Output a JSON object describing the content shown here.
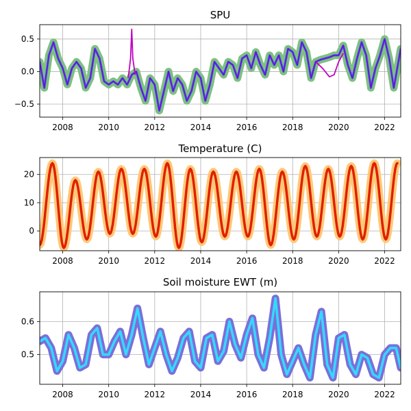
{
  "chart_data": [
    {
      "type": "line",
      "title": "SPU",
      "xlim": [
        2007.0,
        2022.7
      ],
      "ylim": [
        -0.7,
        0.72
      ],
      "xticks": [
        "2008",
        "2010",
        "2012",
        "2014",
        "2016",
        "2018",
        "2020",
        "2022"
      ],
      "xtick_values": [
        2008,
        2010,
        2012,
        2014,
        2016,
        2018,
        2020,
        2022
      ],
      "yticks": [
        "−0.5",
        "0.0",
        "0.5"
      ],
      "ytick_values": [
        -0.5,
        0.0,
        0.5
      ],
      "grid": true,
      "series": [
        {
          "style": "thick-halo",
          "color": "#7fc081",
          "inner_color": "#4f7fc8",
          "x": [
            2007.0,
            2007.2,
            2007.4,
            2007.6,
            2007.8,
            2008.0,
            2008.2,
            2008.4,
            2008.6,
            2008.8,
            2009.0,
            2009.2,
            2009.4,
            2009.6,
            2009.8,
            2010.0,
            2010.2,
            2010.4,
            2010.6,
            2010.8,
            2011.0,
            2011.2,
            2011.4,
            2011.6,
            2011.8,
            2012.0,
            2012.2,
            2012.4,
            2012.6,
            2012.8,
            2013.0,
            2013.2,
            2013.4,
            2013.6,
            2013.8,
            2014.0,
            2014.2,
            2014.4,
            2014.6,
            2014.8,
            2015.0,
            2015.2,
            2015.4,
            2015.6,
            2015.8,
            2016.0,
            2016.2,
            2016.4,
            2016.6,
            2016.8,
            2017.0,
            2017.2,
            2017.4,
            2017.6,
            2017.8,
            2018.0,
            2018.2,
            2018.4,
            2018.6,
            2018.8,
            2019.0,
            2019.2,
            2019.4,
            2019.6,
            2019.8,
            2020.0,
            2020.2,
            2020.4,
            2020.6,
            2020.8,
            2021.0,
            2021.2,
            2021.4,
            2021.6,
            2021.8,
            2022.0,
            2022.2,
            2022.4,
            2022.7
          ],
          "y": [
            0.15,
            -0.25,
            0.25,
            0.45,
            0.2,
            0.05,
            -0.2,
            0.05,
            0.15,
            0.05,
            -0.25,
            -0.1,
            0.35,
            0.2,
            -0.15,
            -0.2,
            -0.15,
            -0.2,
            -0.1,
            -0.2,
            -0.05,
            0.0,
            -0.25,
            -0.45,
            -0.1,
            -0.2,
            -0.6,
            -0.3,
            0.0,
            -0.3,
            -0.1,
            -0.2,
            -0.45,
            -0.3,
            0.0,
            -0.1,
            -0.45,
            -0.2,
            0.15,
            0.05,
            -0.05,
            0.15,
            0.1,
            -0.1,
            0.2,
            0.25,
            0.05,
            0.3,
            0.1,
            -0.05,
            0.25,
            0.1,
            0.25,
            0.0,
            0.35,
            0.3,
            0.1,
            0.45,
            0.3,
            -0.1,
            0.15,
            0.18,
            0.2,
            0.22,
            0.25,
            0.25,
            0.4,
            0.1,
            -0.1,
            0.2,
            0.45,
            0.25,
            -0.25,
            0.05,
            0.25,
            0.5,
            0.2,
            -0.25,
            0.35
          ]
        },
        {
          "style": "thin",
          "color": "#6a0dde",
          "x": [
            2007.0,
            2007.2,
            2007.4,
            2007.6,
            2007.8,
            2008.0,
            2008.2,
            2008.4,
            2008.6,
            2008.8,
            2009.0,
            2009.2,
            2009.4,
            2009.6,
            2009.8,
            2010.0,
            2010.2,
            2010.4,
            2010.6,
            2010.8,
            2011.0,
            2011.2,
            2011.4,
            2011.6,
            2011.8,
            2012.0,
            2012.2,
            2012.4,
            2012.6,
            2012.8,
            2013.0,
            2013.2,
            2013.4,
            2013.6,
            2013.8,
            2014.0,
            2014.2,
            2014.4,
            2014.6,
            2014.8,
            2015.0,
            2015.2,
            2015.4,
            2015.6,
            2015.8,
            2016.0,
            2016.2,
            2016.4,
            2016.6,
            2016.8,
            2017.0,
            2017.2,
            2017.4,
            2017.6,
            2017.8,
            2018.0,
            2018.2,
            2018.4,
            2018.6,
            2018.8,
            2019.0,
            2019.2,
            2019.4,
            2019.6,
            2019.8,
            2020.0,
            2020.2,
            2020.4,
            2020.6,
            2020.8,
            2021.0,
            2021.2,
            2021.4,
            2021.6,
            2021.8,
            2022.0,
            2022.2,
            2022.4,
            2022.7
          ],
          "y": [
            0.15,
            -0.25,
            0.25,
            0.45,
            0.2,
            0.05,
            -0.2,
            0.05,
            0.15,
            0.05,
            -0.25,
            -0.1,
            0.35,
            0.2,
            -0.15,
            -0.2,
            -0.15,
            -0.2,
            -0.1,
            -0.2,
            -0.05,
            0.0,
            -0.25,
            -0.45,
            -0.1,
            -0.2,
            -0.6,
            -0.3,
            0.0,
            -0.3,
            -0.1,
            -0.2,
            -0.45,
            -0.3,
            0.0,
            -0.1,
            -0.45,
            -0.2,
            0.15,
            0.05,
            -0.05,
            0.15,
            0.1,
            -0.1,
            0.2,
            0.25,
            0.05,
            0.3,
            0.1,
            -0.05,
            0.25,
            0.1,
            0.25,
            0.0,
            0.35,
            0.3,
            0.1,
            0.45,
            0.3,
            -0.1,
            0.15,
            0.18,
            0.2,
            0.22,
            0.25,
            0.25,
            0.4,
            0.1,
            -0.1,
            0.2,
            0.45,
            0.25,
            -0.25,
            0.05,
            0.25,
            0.5,
            0.2,
            -0.25,
            0.35
          ]
        },
        {
          "style": "thin",
          "color": "#c000c0",
          "x": [
            2010.85,
            2010.95,
            2011.0,
            2011.05,
            2011.15
          ],
          "y": [
            -0.1,
            0.2,
            0.65,
            0.2,
            -0.05
          ]
        },
        {
          "style": "thin",
          "color": "#c000c0",
          "x": [
            2019.0,
            2019.3,
            2019.6,
            2019.8,
            2020.0,
            2020.2
          ],
          "y": [
            0.15,
            0.05,
            -0.08,
            -0.05,
            0.15,
            0.28
          ]
        }
      ]
    },
    {
      "type": "line",
      "title": "Temperature (C)",
      "xlim": [
        2007.0,
        2022.7
      ],
      "ylim": [
        -7,
        26
      ],
      "xticks": [
        "2008",
        "2010",
        "2012",
        "2014",
        "2016",
        "2018",
        "2020",
        "2022"
      ],
      "xtick_values": [
        2008,
        2010,
        2012,
        2014,
        2016,
        2018,
        2020,
        2022
      ],
      "yticks": [
        "0",
        "10",
        "20"
      ],
      "ytick_values": [
        0,
        10,
        20
      ],
      "grid": true,
      "series": [
        {
          "style": "thick-halo",
          "color": "#ffc878",
          "inner_color": "#e02000",
          "seasonal": {
            "peaks": [
              [
                2007.55,
                24
              ],
              [
                2008.55,
                18
              ],
              [
                2009.55,
                21
              ],
              [
                2010.55,
                22
              ],
              [
                2011.55,
                22
              ],
              [
                2012.55,
                24
              ],
              [
                2013.55,
                22
              ],
              [
                2014.55,
                21
              ],
              [
                2015.55,
                21
              ],
              [
                2016.55,
                22
              ],
              [
                2017.55,
                21
              ],
              [
                2018.55,
                23
              ],
              [
                2019.55,
                22
              ],
              [
                2020.55,
                23
              ],
              [
                2021.55,
                24
              ],
              [
                2022.55,
                24
              ]
            ],
            "troughs": [
              [
                2007.0,
                -5
              ],
              [
                2008.05,
                -6
              ],
              [
                2009.05,
                -3
              ],
              [
                2010.05,
                -1
              ],
              [
                2011.05,
                -1
              ],
              [
                2012.05,
                -2
              ],
              [
                2013.05,
                -6
              ],
              [
                2014.05,
                -4
              ],
              [
                2015.05,
                -2
              ],
              [
                2016.05,
                -2
              ],
              [
                2017.05,
                -5
              ],
              [
                2018.05,
                -3
              ],
              [
                2019.05,
                -2
              ],
              [
                2020.05,
                -2
              ],
              [
                2021.05,
                -3
              ],
              [
                2022.05,
                -3
              ]
            ]
          }
        }
      ]
    },
    {
      "type": "line",
      "title": "Soil moisture EWT (m)",
      "xlim": [
        2007.0,
        2022.7
      ],
      "ylim": [
        0.41,
        0.69
      ],
      "xticks": [
        "2008",
        "2010",
        "2012",
        "2014",
        "2016",
        "2018",
        "2020",
        "2022"
      ],
      "xtick_values": [
        2008,
        2010,
        2012,
        2014,
        2016,
        2018,
        2020,
        2022
      ],
      "yticks": [
        "0.5",
        "0.6"
      ],
      "ytick_values": [
        0.5,
        0.6
      ],
      "grid": true,
      "series": [
        {
          "style": "thick-halo",
          "color": "#7b6fd8",
          "inner_color": "#35d9ff",
          "x": [
            2007.0,
            2007.25,
            2007.5,
            2007.75,
            2008.0,
            2008.25,
            2008.5,
            2008.75,
            2009.0,
            2009.25,
            2009.5,
            2009.75,
            2010.0,
            2010.25,
            2010.5,
            2010.75,
            2011.0,
            2011.25,
            2011.5,
            2011.75,
            2012.0,
            2012.25,
            2012.5,
            2012.75,
            2013.0,
            2013.25,
            2013.5,
            2013.75,
            2014.0,
            2014.25,
            2014.5,
            2014.75,
            2015.0,
            2015.25,
            2015.5,
            2015.75,
            2016.0,
            2016.25,
            2016.5,
            2016.75,
            2017.0,
            2017.25,
            2017.5,
            2017.75,
            2018.0,
            2018.25,
            2018.5,
            2018.75,
            2019.0,
            2019.25,
            2019.5,
            2019.75,
            2020.0,
            2020.25,
            2020.5,
            2020.75,
            2021.0,
            2021.25,
            2021.5,
            2021.75,
            2022.0,
            2022.25,
            2022.5,
            2022.7
          ],
          "y": [
            0.54,
            0.55,
            0.52,
            0.45,
            0.48,
            0.56,
            0.52,
            0.46,
            0.47,
            0.56,
            0.58,
            0.5,
            0.5,
            0.54,
            0.57,
            0.5,
            0.56,
            0.64,
            0.55,
            0.47,
            0.52,
            0.57,
            0.5,
            0.45,
            0.49,
            0.55,
            0.57,
            0.48,
            0.46,
            0.55,
            0.56,
            0.48,
            0.51,
            0.6,
            0.53,
            0.49,
            0.56,
            0.61,
            0.5,
            0.46,
            0.55,
            0.67,
            0.5,
            0.44,
            0.48,
            0.52,
            0.47,
            0.43,
            0.56,
            0.63,
            0.47,
            0.43,
            0.55,
            0.56,
            0.47,
            0.44,
            0.5,
            0.49,
            0.44,
            0.43,
            0.5,
            0.52,
            0.52,
            0.46
          ]
        }
      ]
    }
  ]
}
